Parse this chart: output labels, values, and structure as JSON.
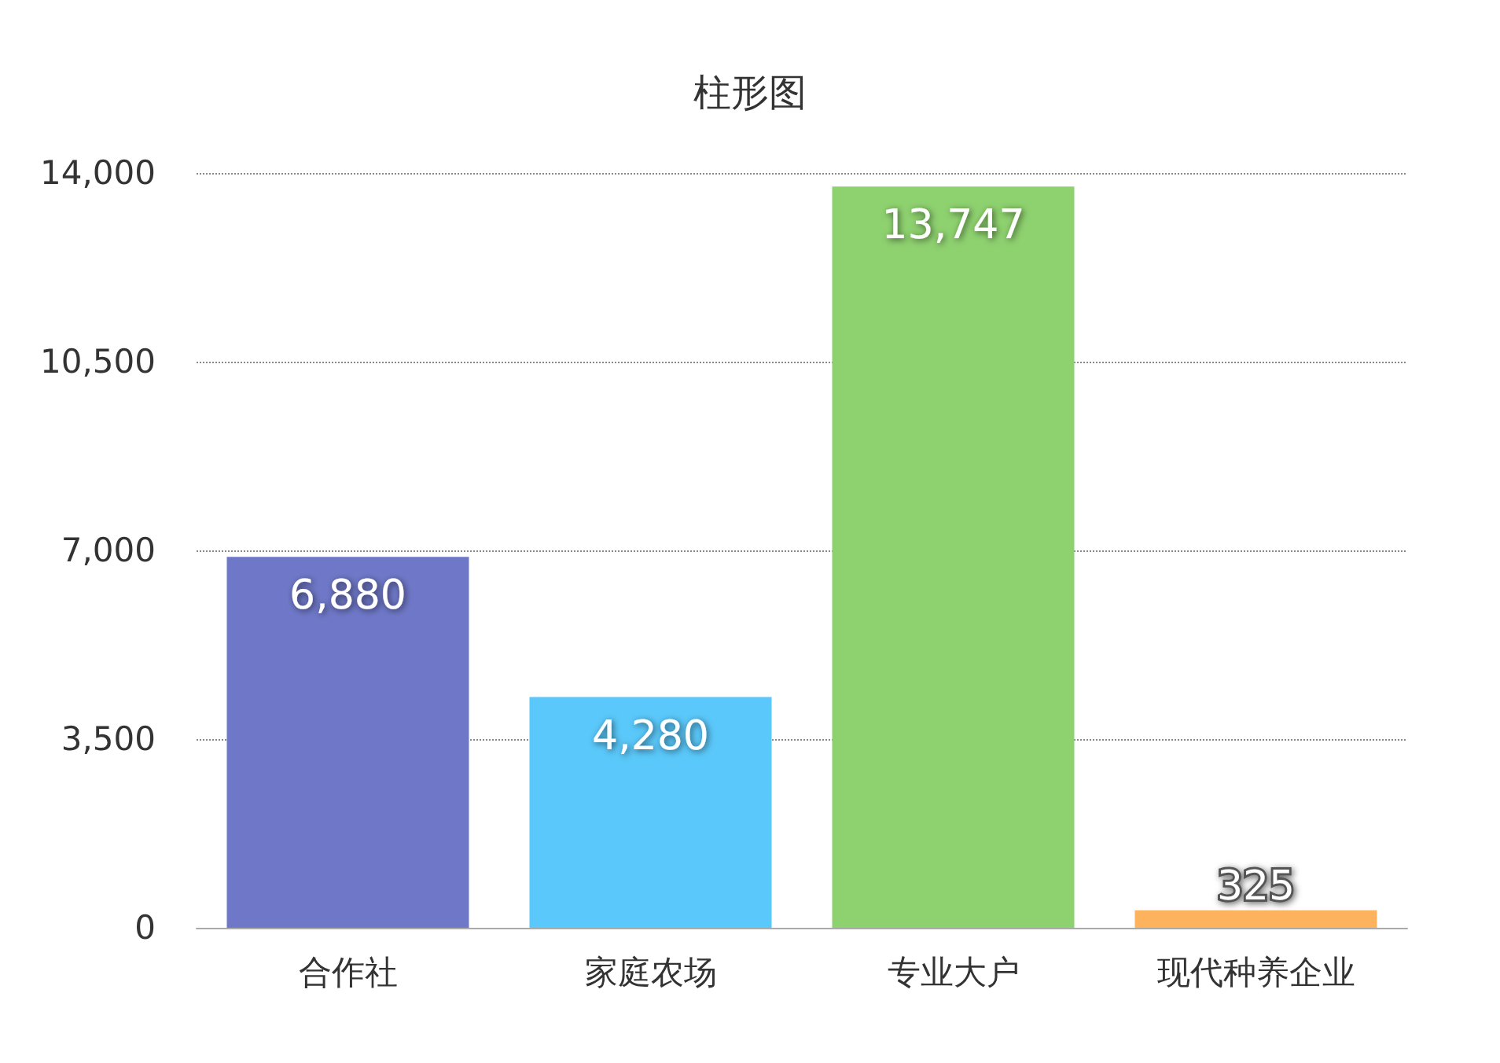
{
  "chart_data": {
    "type": "bar",
    "title": "柱形图",
    "categories": [
      "合作社",
      "家庭农场",
      "专业大户",
      "现代种养企业"
    ],
    "values": [
      6880,
      4280,
      13747,
      325
    ],
    "colors": [
      "#6f78c8",
      "#5ac8fa",
      "#8ed16f",
      "#fdb35e"
    ],
    "ylim": [
      0,
      14000
    ],
    "yticks": [
      {
        "value": 0,
        "label": "0"
      },
      {
        "value": 3500,
        "label": "3,500"
      },
      {
        "value": 7000,
        "label": "7,000"
      },
      {
        "value": 10500,
        "label": "10,500"
      },
      {
        "value": 14000,
        "label": "14,000"
      }
    ],
    "grid": "y",
    "value_labels": [
      "6,880",
      "4,280",
      "13,747",
      "325"
    ]
  }
}
